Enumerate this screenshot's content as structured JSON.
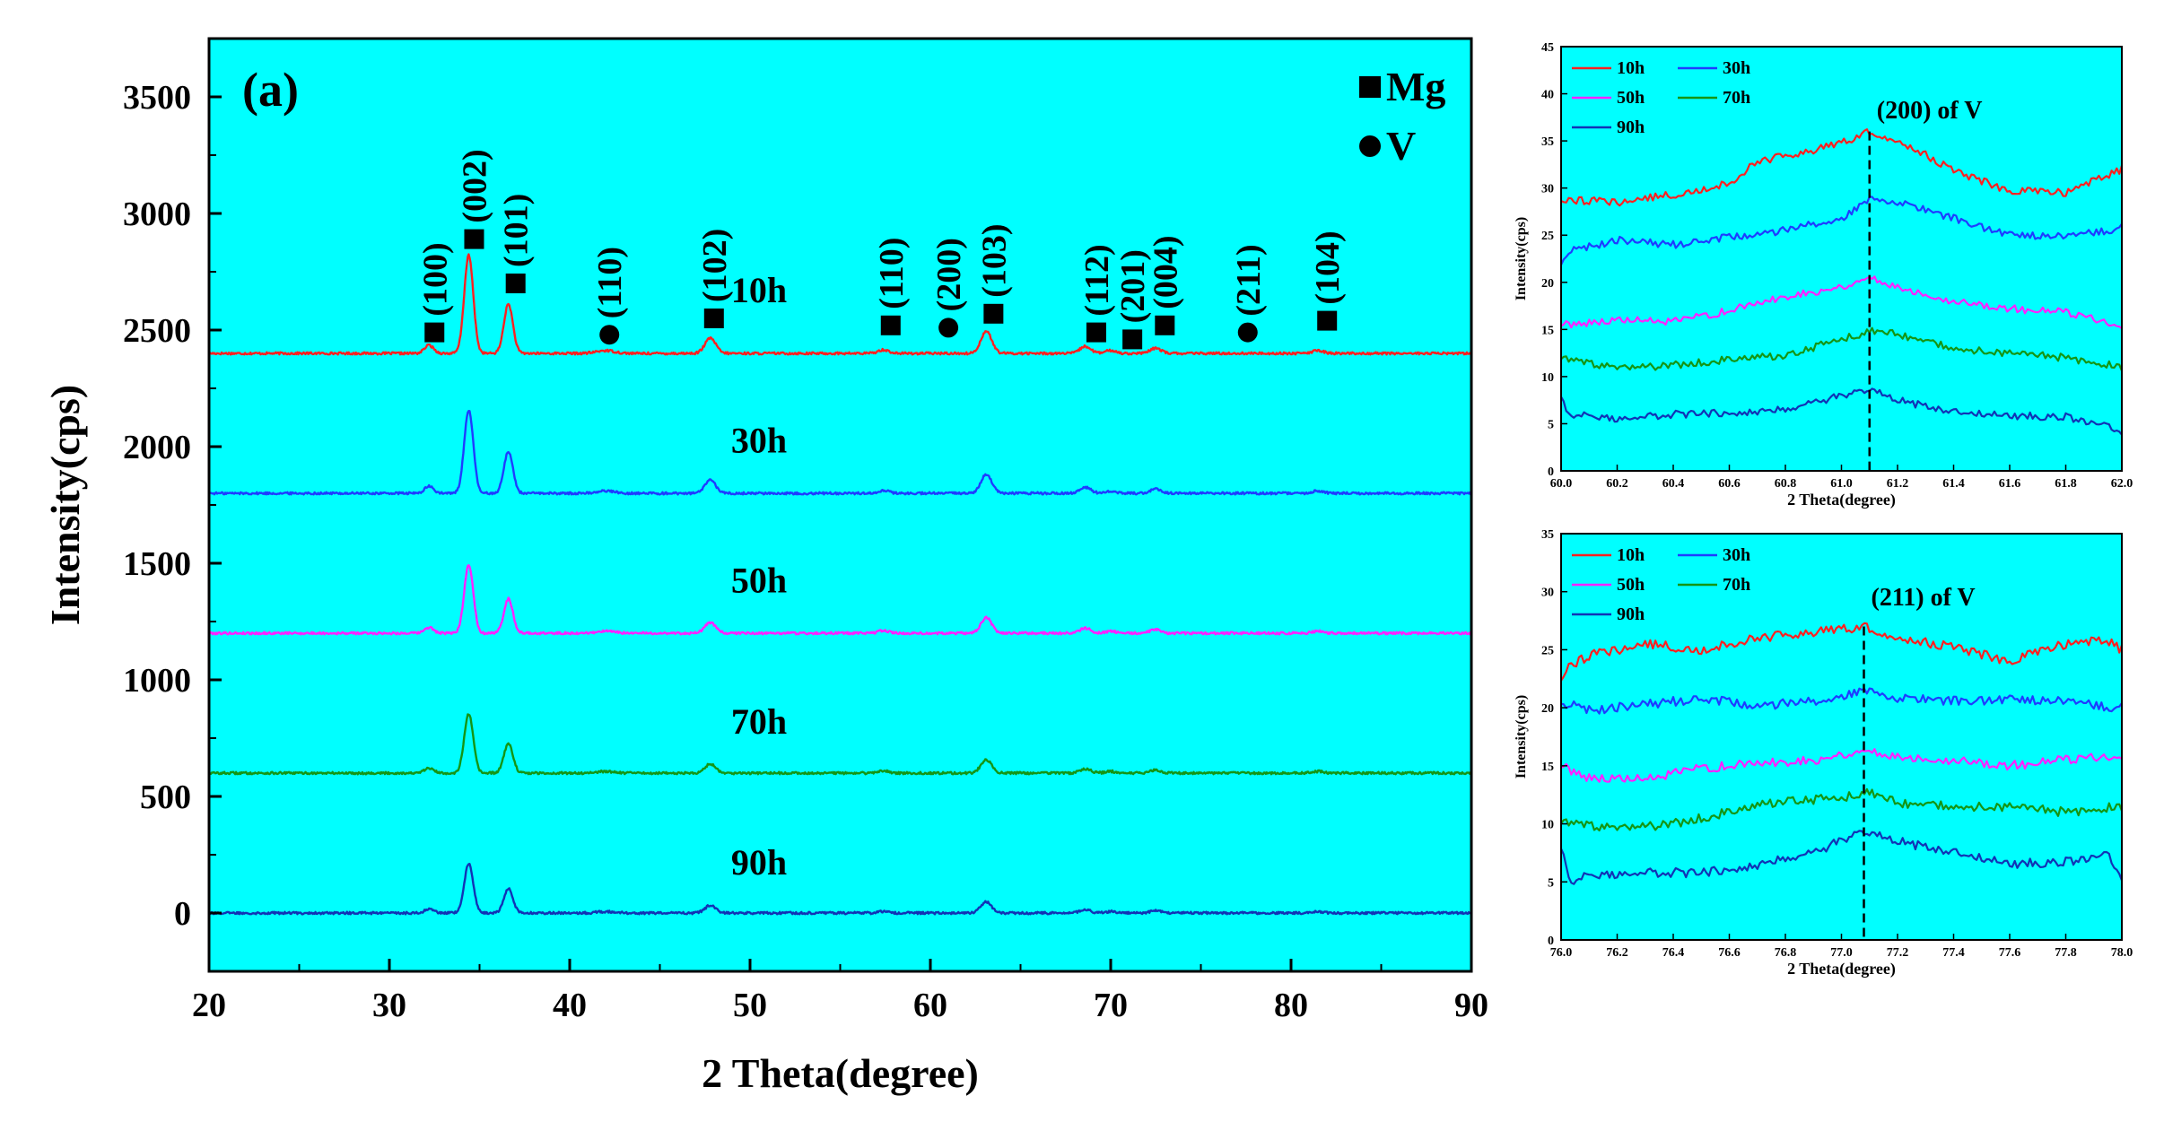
{
  "colors": {
    "plot_bg": "#00ffff",
    "h10": "#ff2020",
    "h30": "#1f3cff",
    "h50": "#ff22ff",
    "h70": "#159515",
    "h90": "#1233b5",
    "marker": "#000000"
  },
  "chart_data": [
    {
      "type": "line",
      "title": "(a)",
      "xlabel": "2 Theta(degree)",
      "ylabel": "Intensity(cps)",
      "xlim": [
        20,
        90
      ],
      "ylim": [
        -250,
        3750
      ],
      "xticks": [
        20,
        30,
        40,
        50,
        60,
        70,
        80,
        90
      ],
      "yticks": [
        0,
        500,
        1000,
        1500,
        2000,
        2500,
        3000,
        3500
      ],
      "legend": [
        {
          "symbol": "square",
          "label": "Mg"
        },
        {
          "symbol": "circle",
          "label": "V"
        }
      ],
      "series": [
        {
          "name": "10h",
          "label": "10h",
          "color_key": "h10",
          "baseline": 2400,
          "scale": 1.0,
          "label_pos": [
            50.5,
            2620
          ]
        },
        {
          "name": "30h",
          "label": "30h",
          "color_key": "h30",
          "baseline": 1800,
          "scale": 0.85,
          "label_pos": [
            50.5,
            1975
          ]
        },
        {
          "name": "50h",
          "label": "50h",
          "color_key": "h50",
          "baseline": 1200,
          "scale": 0.7,
          "label_pos": [
            50.5,
            1375
          ]
        },
        {
          "name": "70h",
          "label": "70h",
          "color_key": "h70",
          "baseline": 600,
          "scale": 0.6,
          "label_pos": [
            50.5,
            770
          ]
        },
        {
          "name": "90h",
          "label": "90h",
          "color_key": "h90",
          "baseline": 0,
          "scale": 0.5,
          "label_pos": [
            50.5,
            165
          ]
        }
      ],
      "peaks": [
        {
          "x": 32.2,
          "h": 35,
          "w": 0.25
        },
        {
          "x": 34.4,
          "h": 420,
          "w": 0.25
        },
        {
          "x": 36.6,
          "h": 210,
          "w": 0.25
        },
        {
          "x": 42.0,
          "h": 12,
          "w": 0.5
        },
        {
          "x": 47.8,
          "h": 65,
          "w": 0.3
        },
        {
          "x": 57.4,
          "h": 15,
          "w": 0.3
        },
        {
          "x": 63.1,
          "h": 95,
          "w": 0.3
        },
        {
          "x": 68.6,
          "h": 30,
          "w": 0.3
        },
        {
          "x": 70.0,
          "h": 12,
          "w": 0.3
        },
        {
          "x": 72.5,
          "h": 22,
          "w": 0.3
        },
        {
          "x": 81.5,
          "h": 12,
          "w": 0.3
        }
      ],
      "annotations": [
        {
          "label": "(100)",
          "symbol": "square",
          "x": 32.5,
          "y": 2490
        },
        {
          "label": "(002)",
          "symbol": "square",
          "x": 34.7,
          "y": 2890
        },
        {
          "label": "(101)",
          "symbol": "square",
          "x": 37.0,
          "y": 2700
        },
        {
          "label": "(110)",
          "symbol": "circle",
          "x": 42.2,
          "y": 2480
        },
        {
          "label": "(102)",
          "symbol": "square",
          "x": 48.0,
          "y": 2550
        },
        {
          "label": "(110)",
          "symbol": "square",
          "x": 57.8,
          "y": 2520
        },
        {
          "label": "(200)",
          "symbol": "circle",
          "x": 61.0,
          "y": 2510
        },
        {
          "label": "(103)",
          "symbol": "square",
          "x": 63.5,
          "y": 2570
        },
        {
          "label": "(112)",
          "symbol": "square",
          "x": 69.2,
          "y": 2490
        },
        {
          "label": "(201)",
          "symbol": "square",
          "x": 71.2,
          "y": 2460
        },
        {
          "label": "(004)",
          "symbol": "square",
          "x": 73.0,
          "y": 2520
        },
        {
          "label": "(211)",
          "symbol": "circle",
          "x": 77.6,
          "y": 2490
        },
        {
          "label": "(104)",
          "symbol": "square",
          "x": 82.0,
          "y": 2540
        }
      ]
    },
    {
      "type": "line",
      "title": "(200) of V",
      "xlabel": "2 Theta(degree)",
      "ylabel": "Intensity(cps)",
      "xlim": [
        60.0,
        62.0
      ],
      "ylim": [
        0,
        45
      ],
      "xticks": [
        "60.0",
        "60.2",
        "60.4",
        "60.6",
        "60.8",
        "61.0",
        "61.2",
        "61.4",
        "61.6",
        "61.8",
        "62.0"
      ],
      "yticks": [
        0,
        5,
        10,
        15,
        20,
        25,
        30,
        35,
        40,
        45
      ],
      "peak_x": 61.1,
      "series": [
        {
          "name": "10h",
          "color_key": "h10",
          "x": [
            60.0,
            60.2,
            60.4,
            60.6,
            60.7,
            60.8,
            60.9,
            61.0,
            61.1,
            61.2,
            61.3,
            61.4,
            61.6,
            61.8,
            62.0
          ],
          "y": [
            28.8,
            28.5,
            29.3,
            30.5,
            32.8,
            33.4,
            34.0,
            34.8,
            36.0,
            35.0,
            33.5,
            31.8,
            29.7,
            29.5,
            32.0
          ]
        },
        {
          "name": "30h",
          "color_key": "h30",
          "x": [
            60.0,
            60.02,
            60.2,
            60.4,
            60.6,
            60.8,
            61.0,
            61.1,
            61.2,
            61.4,
            61.6,
            61.8,
            62.0
          ],
          "y": [
            22.0,
            23.2,
            24.5,
            24.0,
            24.8,
            25.5,
            26.8,
            28.8,
            28.5,
            26.8,
            25.0,
            24.8,
            25.8
          ]
        },
        {
          "name": "50h",
          "color_key": "h50",
          "x": [
            60.0,
            60.2,
            60.4,
            60.6,
            60.8,
            61.0,
            61.1,
            61.2,
            61.4,
            61.6,
            61.8,
            62.0
          ],
          "y": [
            15.5,
            16.0,
            15.8,
            17.0,
            18.5,
            19.5,
            20.5,
            19.5,
            18.0,
            17.2,
            16.8,
            15.5
          ]
        },
        {
          "name": "70h",
          "color_key": "h70",
          "x": [
            60.0,
            60.2,
            60.4,
            60.6,
            60.8,
            61.0,
            61.1,
            61.2,
            61.4,
            61.6,
            61.8,
            62.0
          ],
          "y": [
            12.0,
            10.8,
            11.2,
            11.8,
            12.2,
            14.0,
            14.8,
            14.5,
            13.0,
            12.5,
            12.0,
            11.0
          ]
        },
        {
          "name": "90h",
          "color_key": "h90",
          "x": [
            60.0,
            60.02,
            60.2,
            60.4,
            60.6,
            60.8,
            61.0,
            61.1,
            61.2,
            61.4,
            61.6,
            61.8,
            62.0
          ],
          "y": [
            8.0,
            6.0,
            5.5,
            6.0,
            6.2,
            6.5,
            8.0,
            8.8,
            7.5,
            6.2,
            5.8,
            5.8,
            4.2
          ]
        }
      ],
      "legend": [
        {
          "label": "10h",
          "color_key": "h10"
        },
        {
          "label": "30h",
          "color_key": "h30"
        },
        {
          "label": "50h",
          "color_key": "h50"
        },
        {
          "label": "70h",
          "color_key": "h70"
        },
        {
          "label": "90h",
          "color_key": "h90"
        }
      ]
    },
    {
      "type": "line",
      "title": "(211) of V",
      "xlabel": "2 Theta(degree)",
      "ylabel": "Intensity(cps)",
      "xlim": [
        76.0,
        78.0
      ],
      "ylim": [
        0,
        35
      ],
      "xticks": [
        "76.0",
        "76.2",
        "76.4",
        "76.6",
        "76.8",
        "77.0",
        "77.2",
        "77.4",
        "77.6",
        "77.8",
        "78.0"
      ],
      "yticks": [
        0,
        5,
        10,
        15,
        20,
        25,
        30,
        35
      ],
      "peak_x": 77.08,
      "series": [
        {
          "name": "10h",
          "color_key": "h10",
          "x": [
            76.0,
            76.02,
            76.1,
            76.3,
            76.5,
            76.7,
            76.9,
            77.08,
            77.2,
            77.4,
            77.6,
            77.8,
            77.95,
            78.0
          ],
          "y": [
            22.5,
            23.5,
            24.5,
            25.5,
            25.0,
            26.0,
            26.5,
            27.0,
            26.0,
            25.2,
            24.0,
            25.5,
            25.8,
            25.0
          ]
        },
        {
          "name": "30h",
          "color_key": "h30",
          "x": [
            76.0,
            76.1,
            76.3,
            76.5,
            76.7,
            76.9,
            77.08,
            77.2,
            77.4,
            77.6,
            77.8,
            78.0
          ],
          "y": [
            20.5,
            19.8,
            20.3,
            20.8,
            20.2,
            20.5,
            21.5,
            20.8,
            20.6,
            20.7,
            20.5,
            20.0
          ]
        },
        {
          "name": "50h",
          "color_key": "h50",
          "x": [
            76.0,
            76.1,
            76.3,
            76.5,
            76.7,
            76.9,
            77.08,
            77.2,
            77.4,
            77.6,
            77.8,
            78.0
          ],
          "y": [
            15.0,
            14.0,
            13.8,
            14.8,
            15.2,
            15.5,
            16.3,
            15.8,
            15.5,
            15.0,
            15.5,
            16.0
          ]
        },
        {
          "name": "70h",
          "color_key": "h70",
          "x": [
            76.0,
            76.2,
            76.4,
            76.6,
            76.8,
            77.0,
            77.08,
            77.2,
            77.4,
            77.6,
            77.8,
            78.0
          ],
          "y": [
            10.2,
            9.5,
            10.0,
            11.0,
            12.0,
            12.2,
            12.8,
            11.8,
            11.5,
            11.5,
            11.0,
            11.5
          ]
        },
        {
          "name": "90h",
          "color_key": "h90",
          "x": [
            76.0,
            76.03,
            76.1,
            76.3,
            76.5,
            76.7,
            76.9,
            77.08,
            77.2,
            77.4,
            77.6,
            77.8,
            77.95,
            78.0
          ],
          "y": [
            8.0,
            5.0,
            5.5,
            5.8,
            5.8,
            6.5,
            7.5,
            9.5,
            8.5,
            7.5,
            6.5,
            6.8,
            7.2,
            5.5
          ]
        }
      ],
      "legend": [
        {
          "label": "10h",
          "color_key": "h10"
        },
        {
          "label": "30h",
          "color_key": "h30"
        },
        {
          "label": "50h",
          "color_key": "h50"
        },
        {
          "label": "70h",
          "color_key": "h70"
        },
        {
          "label": "90h",
          "color_key": "h90"
        }
      ]
    }
  ]
}
